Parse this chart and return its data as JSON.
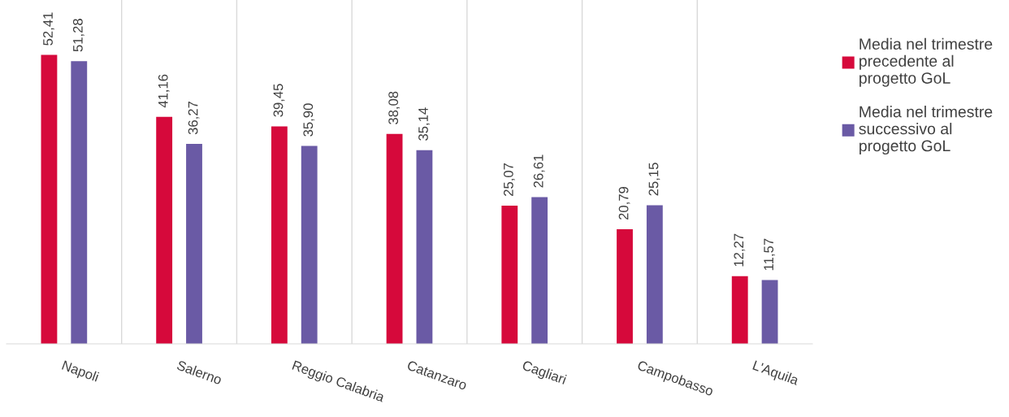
{
  "chart_data": {
    "type": "bar",
    "categories": [
      "Napoli",
      "Salerno",
      "Reggio Calabria",
      "Catanzaro",
      "Cagliari",
      "Campobasso",
      "L'Aquila"
    ],
    "series": [
      {
        "name": "Media nel trimestre precedente al progetto GoL",
        "color": "#d6093b",
        "values": [
          52.41,
          41.16,
          39.45,
          38.08,
          25.07,
          20.79,
          12.27
        ],
        "value_labels": [
          "52,41",
          "41,16",
          "39,45",
          "38,08",
          "25,07",
          "20,79",
          "12,27"
        ]
      },
      {
        "name": "Media nel trimestre successivo al progetto GoL",
        "color": "#6a5aa5",
        "values": [
          51.28,
          36.27,
          35.9,
          35.14,
          26.61,
          25.15,
          11.57
        ],
        "value_labels": [
          "51,28",
          "36,27",
          "35,90",
          "35,14",
          "26,61",
          "25,15",
          "11,57"
        ]
      }
    ],
    "grid": "x",
    "legend": "right",
    "tick_labels": "x"
  }
}
